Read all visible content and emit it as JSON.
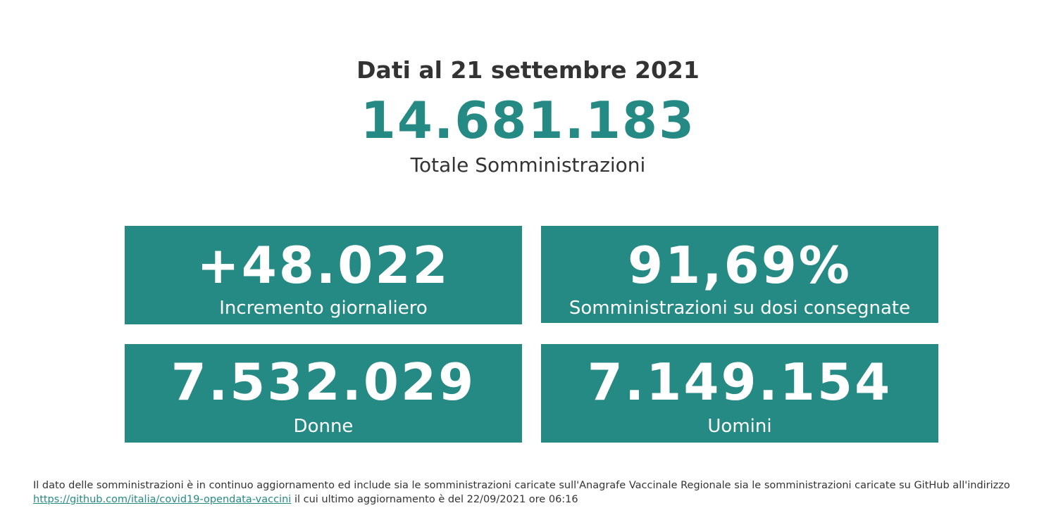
{
  "header": {
    "date_title": "Dati al 21 settembre 2021",
    "total_value": "14.681.183",
    "total_label": "Totale Somministrazioni"
  },
  "cards": {
    "incremento": {
      "value": "+48.022",
      "label": "Incremento giornaliero"
    },
    "percentuale": {
      "value": "91,69%",
      "label": "Somministrazioni su dosi consegnate"
    },
    "donne": {
      "value": "7.532.029",
      "label": "Donne"
    },
    "uomini": {
      "value": "7.149.154",
      "label": "Uomini"
    }
  },
  "footnote": {
    "text_before": "Il dato delle somministrazioni è in continuo aggiornamento ed include sia le somministrazioni caricate sull'Anagrafe Vaccinale Regionale sia le somministrazioni caricate su GitHub all'indirizzo",
    "link_text": "https://github.com/italia/covid19-opendata-vaccini",
    "text_after": "il cui ultimo aggiornamento è del 22/09/2021 ore 06:16"
  },
  "colors": {
    "accent": "#268a84",
    "text": "#333333",
    "card_text": "#ffffff"
  }
}
